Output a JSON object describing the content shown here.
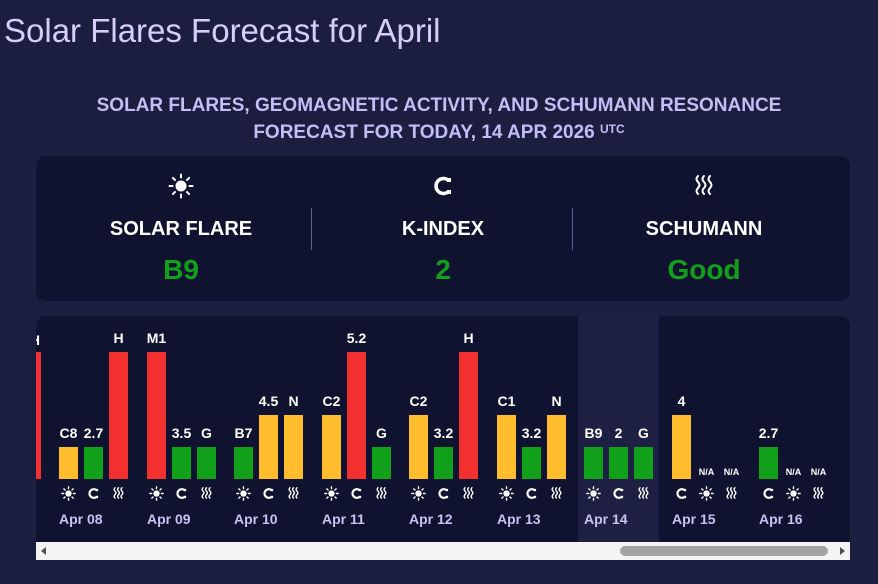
{
  "page": {
    "title": "Solar Flares Forecast for April",
    "subtitle_line1": "SOLAR FLARES, GEOMAGNETIC ACTIVITY, AND SCHUMANN RESONANCE",
    "subtitle_line2": "FORECAST FOR TODAY, 14 APR 2026",
    "subtitle_sup": "UTC"
  },
  "summary": {
    "items": [
      {
        "icon": "sun-icon",
        "label": "SOLAR FLARE",
        "value": "B9"
      },
      {
        "icon": "magnet-icon",
        "label": "K-INDEX",
        "value": "2"
      },
      {
        "icon": "waves-icon",
        "label": "SCHUMANN",
        "value": "Good"
      }
    ],
    "value_color": "#10a01a"
  },
  "colors": {
    "red": "#f23030",
    "yellow": "#ffbd2e",
    "green": "#10a01a"
  },
  "timeline": {
    "days": [
      {
        "date": "Apr 08",
        "bars": [
          {
            "label": "C8",
            "level": 0.25,
            "color": "yellow"
          },
          {
            "label": "2.7",
            "level": 0.25,
            "color": "green"
          },
          {
            "label": "H",
            "level": 1.0,
            "color": "red"
          }
        ],
        "icons": [
          "sun-icon",
          "magnet-icon",
          "waves-icon"
        ]
      },
      {
        "date": "Apr 09",
        "bars": [
          {
            "label": "M1",
            "level": 1.0,
            "color": "red"
          },
          {
            "label": "3.5",
            "level": 0.25,
            "color": "green"
          },
          {
            "label": "G",
            "level": 0.25,
            "color": "green"
          }
        ],
        "icons": [
          "sun-icon",
          "magnet-icon",
          "waves-icon"
        ]
      },
      {
        "date": "Apr 10",
        "bars": [
          {
            "label": "B7",
            "level": 0.25,
            "color": "green"
          },
          {
            "label": "4.5",
            "level": 0.5,
            "color": "yellow"
          },
          {
            "label": "N",
            "level": 0.5,
            "color": "yellow"
          }
        ],
        "icons": [
          "sun-icon",
          "magnet-icon",
          "waves-icon"
        ]
      },
      {
        "date": "Apr 11",
        "bars": [
          {
            "label": "C2",
            "level": 0.5,
            "color": "yellow"
          },
          {
            "label": "5.2",
            "level": 1.0,
            "color": "red"
          },
          {
            "label": "G",
            "level": 0.25,
            "color": "green"
          }
        ],
        "icons": [
          "sun-icon",
          "magnet-icon",
          "waves-icon"
        ]
      },
      {
        "date": "Apr 12",
        "bars": [
          {
            "label": "C2",
            "level": 0.5,
            "color": "yellow"
          },
          {
            "label": "3.2",
            "level": 0.25,
            "color": "green"
          },
          {
            "label": "H",
            "level": 1.0,
            "color": "red"
          }
        ],
        "icons": [
          "sun-icon",
          "magnet-icon",
          "waves-icon"
        ]
      },
      {
        "date": "Apr 13",
        "bars": [
          {
            "label": "C1",
            "level": 0.5,
            "color": "yellow"
          },
          {
            "label": "3.2",
            "level": 0.25,
            "color": "green"
          },
          {
            "label": "N",
            "level": 0.5,
            "color": "yellow"
          }
        ],
        "icons": [
          "sun-icon",
          "magnet-icon",
          "waves-icon"
        ]
      },
      {
        "date": "Apr 14",
        "today": true,
        "bars": [
          {
            "label": "B9",
            "level": 0.25,
            "color": "green"
          },
          {
            "label": "2",
            "level": 0.25,
            "color": "green"
          },
          {
            "label": "G",
            "level": 0.25,
            "color": "green"
          }
        ],
        "icons": [
          "sun-icon",
          "magnet-icon",
          "waves-icon"
        ]
      },
      {
        "date": "Apr 15",
        "bars": [
          {
            "label": "4",
            "level": 0.5,
            "color": "yellow"
          },
          {
            "label": "N/A",
            "level": 0,
            "color": "none"
          },
          {
            "label": "N/A",
            "level": 0,
            "color": "none"
          }
        ],
        "icons": [
          "magnet-icon",
          "sun-icon",
          "waves-icon"
        ]
      },
      {
        "date": "Apr 16",
        "bars": [
          {
            "label": "2.7",
            "level": 0.25,
            "color": "green"
          },
          {
            "label": "N/A",
            "level": 0,
            "color": "none"
          },
          {
            "label": "N/A",
            "level": 0,
            "color": "none"
          }
        ],
        "icons": [
          "magnet-icon",
          "sun-icon",
          "waves-icon"
        ]
      }
    ]
  }
}
